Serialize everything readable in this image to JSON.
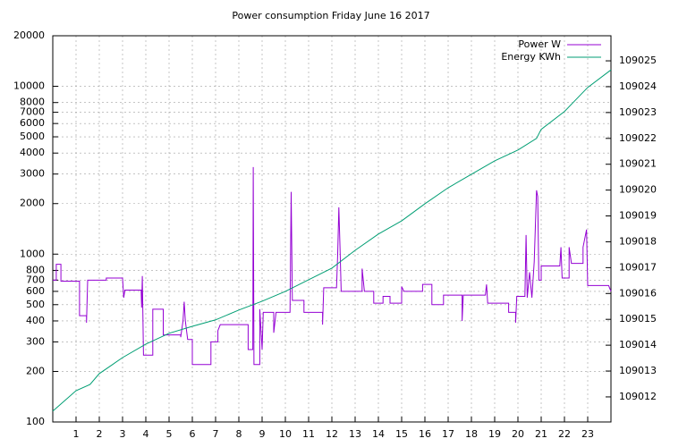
{
  "chart_data": {
    "type": "line",
    "title": "Power consumption Friday June 16 2017",
    "xlim": [
      0,
      24
    ],
    "xticks": [
      1,
      2,
      3,
      4,
      5,
      6,
      7,
      8,
      9,
      10,
      11,
      12,
      13,
      14,
      15,
      16,
      17,
      18,
      19,
      20,
      21,
      22,
      23
    ],
    "ylim": [
      100,
      20000
    ],
    "ylog": true,
    "yticks": [
      100,
      200,
      300,
      400,
      500,
      600,
      700,
      800,
      1000,
      2000,
      3000,
      4000,
      5000,
      6000,
      7000,
      8000,
      10000,
      20000
    ],
    "y2lim": [
      109011.03,
      109025.97
    ],
    "y2ticks": [
      109012,
      109013,
      109014,
      109015,
      109016,
      109017,
      109018,
      109019,
      109020,
      109021,
      109022,
      109023,
      109024,
      109025
    ],
    "grid": true,
    "legend": "top-right",
    "series": [
      {
        "name": "Power W",
        "color": "#9400d3",
        "axis": "y",
        "x": [
          0,
          0.15,
          0.15,
          0.35,
          0.35,
          1.15,
          1.15,
          1.45,
          1.45,
          1.5,
          2.3,
          2.3,
          3,
          3.05,
          3.1,
          3.8,
          3.82,
          3.85,
          3.9,
          4.3,
          4.3,
          4.75,
          4.75,
          5.5,
          5.5,
          5.6,
          5.65,
          5.7,
          5.8,
          6,
          6,
          6.8,
          6.8,
          7.1,
          7.1,
          7.2,
          8.4,
          8.4,
          8.6,
          8.62,
          8.65,
          8.9,
          8.9,
          9,
          9.05,
          9.5,
          9.5,
          9.6,
          10.2,
          10.25,
          10.3,
          10.8,
          10.8,
          11.6,
          11.6,
          11.65,
          12.2,
          12.25,
          12.3,
          12.35,
          12.4,
          13.3,
          13.3,
          13.4,
          13.8,
          13.8,
          14.2,
          14.2,
          14.5,
          14.5,
          15,
          15,
          15.1,
          15.9,
          15.9,
          16.3,
          16.3,
          16.8,
          16.8,
          17.6,
          17.6,
          17.65,
          18.6,
          18.65,
          18.7,
          19.6,
          19.6,
          19.9,
          19.9,
          19.95,
          20.3,
          20.35,
          20.4,
          20.5,
          20.6,
          20.7,
          20.8,
          20.85,
          20.9,
          21,
          21,
          21.8,
          21.85,
          21.9,
          22.2,
          22.2,
          22.3,
          22.8,
          22.8,
          22.95,
          23,
          23.9,
          24
        ],
        "values": [
          700,
          700,
          870,
          870,
          690,
          690,
          430,
          430,
          390,
          700,
          700,
          720,
          720,
          550,
          610,
          610,
          480,
          740,
          250,
          250,
          470,
          470,
          330,
          330,
          320,
          400,
          520,
          400,
          310,
          310,
          220,
          220,
          300,
          300,
          350,
          380,
          380,
          270,
          270,
          3300,
          220,
          220,
          470,
          270,
          450,
          450,
          340,
          450,
          450,
          2350,
          530,
          530,
          450,
          450,
          380,
          630,
          630,
          1000,
          1900,
          1100,
          600,
          600,
          820,
          600,
          600,
          510,
          510,
          560,
          560,
          510,
          510,
          640,
          600,
          600,
          660,
          660,
          500,
          500,
          570,
          570,
          400,
          570,
          570,
          660,
          510,
          510,
          450,
          450,
          390,
          560,
          560,
          1300,
          550,
          780,
          550,
          900,
          2400,
          2200,
          700,
          700,
          850,
          850,
          1100,
          720,
          720,
          1100,
          880,
          880,
          1100,
          1400,
          650,
          650,
          600
        ]
      },
      {
        "name": "Energy KWh",
        "color": "#009e73",
        "axis": "y2",
        "x": [
          0,
          1,
          1.6,
          2,
          3,
          4,
          5,
          6,
          7,
          8,
          9,
          10,
          11,
          12,
          13,
          14,
          15,
          16,
          17,
          18,
          19,
          20,
          20.8,
          21,
          22,
          23,
          24
        ],
        "values": [
          109011.45,
          109012.24,
          109012.48,
          109012.9,
          109013.52,
          109014.04,
          109014.46,
          109014.73,
          109014.98,
          109015.36,
          109015.7,
          109016.08,
          109016.53,
          109016.98,
          109017.67,
          109018.3,
          109018.81,
          109019.47,
          109020.09,
          109020.61,
          109021.13,
          109021.55,
          109022.0,
          109022.35,
          109023.04,
          109023.97,
          109024.65
        ]
      }
    ]
  }
}
